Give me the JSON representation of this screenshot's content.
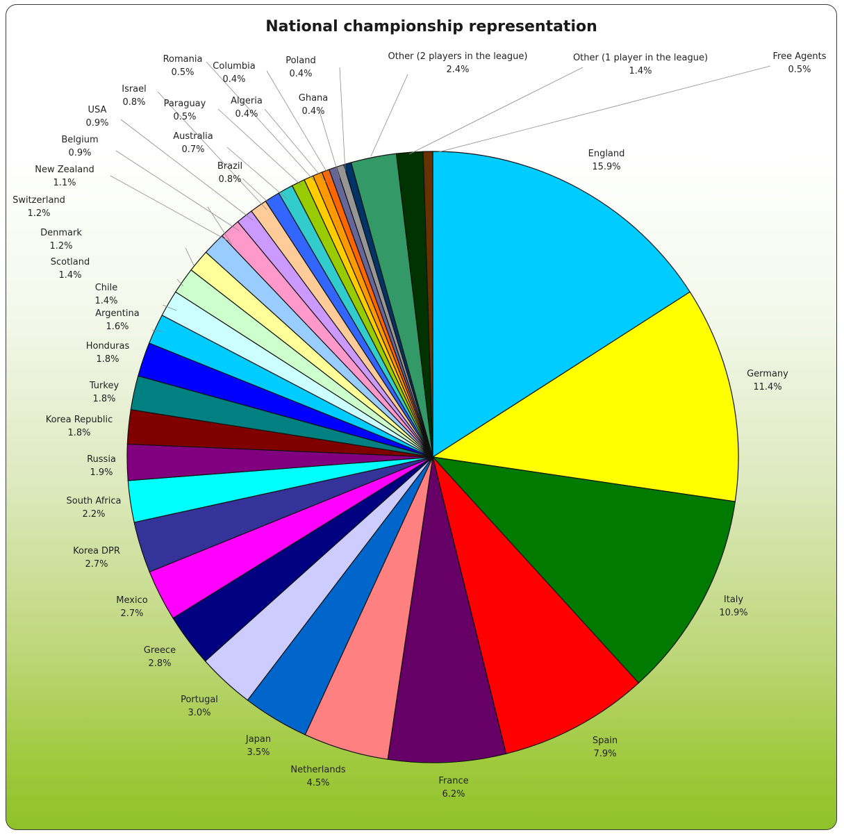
{
  "chart_data": {
    "type": "pie",
    "title": "National championship representation",
    "slices": [
      {
        "label": "England",
        "value_label": "15.9%",
        "value": 15.9,
        "color": "#00CCFF"
      },
      {
        "label": "Germany",
        "value_label": "11.4%",
        "value": 11.4,
        "color": "#FFFF00"
      },
      {
        "label": "Italy",
        "value_label": "10.9%",
        "value": 10.9,
        "color": "#007A00"
      },
      {
        "label": "Spain",
        "value_label": "7.9%",
        "value": 7.9,
        "color": "#FF0000"
      },
      {
        "label": "France",
        "value_label": "6.2%",
        "value": 6.2,
        "color": "#660066"
      },
      {
        "label": "Netherlands",
        "value_label": "4.5%",
        "value": 4.5,
        "color": "#FF8080"
      },
      {
        "label": "Japan",
        "value_label": "3.5%",
        "value": 3.5,
        "color": "#0066CC"
      },
      {
        "label": "Portugal",
        "value_label": "3.0%",
        "value": 3.0,
        "color": "#CCCCFF"
      },
      {
        "label": "Greece",
        "value_label": "2.8%",
        "value": 2.8,
        "color": "#000080"
      },
      {
        "label": "Mexico",
        "value_label": "2.7%",
        "value": 2.7,
        "color": "#FF00FF"
      },
      {
        "label": "Korea DPR",
        "value_label": "2.7%",
        "value": 2.7,
        "color": "#333399"
      },
      {
        "label": "South Africa",
        "value_label": "2.2%",
        "value": 2.2,
        "color": "#00FFFF"
      },
      {
        "label": "Russia",
        "value_label": "1.9%",
        "value": 1.9,
        "color": "#800080"
      },
      {
        "label": "Korea Republic",
        "value_label": "1.8%",
        "value": 1.8,
        "color": "#800000"
      },
      {
        "label": "Turkey",
        "value_label": "1.8%",
        "value": 1.8,
        "color": "#008080"
      },
      {
        "label": "Honduras",
        "value_label": "1.8%",
        "value": 1.8,
        "color": "#0000FF"
      },
      {
        "label": "Argentina",
        "value_label": "1.6%",
        "value": 1.6,
        "color": "#00CCFF"
      },
      {
        "label": "Chile",
        "value_label": "1.4%",
        "value": 1.4,
        "color": "#CCFFFF"
      },
      {
        "label": "Scotland",
        "value_label": "1.4%",
        "value": 1.4,
        "color": "#CCFFCC"
      },
      {
        "label": "Denmark",
        "value_label": "1.2%",
        "value": 1.2,
        "color": "#FFFF99"
      },
      {
        "label": "Switzerland",
        "value_label": "1.2%",
        "value": 1.2,
        "color": "#99CCFF"
      },
      {
        "label": "New Zealand",
        "value_label": "1.1%",
        "value": 1.1,
        "color": "#FF99CC"
      },
      {
        "label": "Belgium",
        "value_label": "0.9%",
        "value": 0.9,
        "color": "#CC99FF"
      },
      {
        "label": "USA",
        "value_label": "0.9%",
        "value": 0.9,
        "color": "#FFCC99"
      },
      {
        "label": "Israel",
        "value_label": "0.8%",
        "value": 0.8,
        "color": "#3366FF"
      },
      {
        "label": "Brazil",
        "value_label": "0.8%",
        "value": 0.8,
        "color": "#33CCCC"
      },
      {
        "label": "Australia",
        "value_label": "0.7%",
        "value": 0.7,
        "color": "#99CC00"
      },
      {
        "label": "Paraguay",
        "value_label": "0.5%",
        "value": 0.5,
        "color": "#FFCC00"
      },
      {
        "label": "Romania",
        "value_label": "0.5%",
        "value": 0.5,
        "color": "#FF9900"
      },
      {
        "label": "Algeria",
        "value_label": "0.4%",
        "value": 0.4,
        "color": "#FF6600"
      },
      {
        "label": "Columbia",
        "value_label": "0.4%",
        "value": 0.4,
        "color": "#666699"
      },
      {
        "label": "Ghana",
        "value_label": "0.4%",
        "value": 0.4,
        "color": "#969696"
      },
      {
        "label": "Poland",
        "value_label": "0.4%",
        "value": 0.4,
        "color": "#003366"
      },
      {
        "label": "Other (2 players in the league)",
        "value_label": "2.4%",
        "value": 2.4,
        "color": "#339966"
      },
      {
        "label": "Other (1 player in the league)",
        "value_label": "1.4%",
        "value": 1.4,
        "color": "#003300"
      },
      {
        "label": "Free Agents",
        "value_label": "0.5%",
        "value": 0.5,
        "color": "#663300"
      }
    ]
  }
}
